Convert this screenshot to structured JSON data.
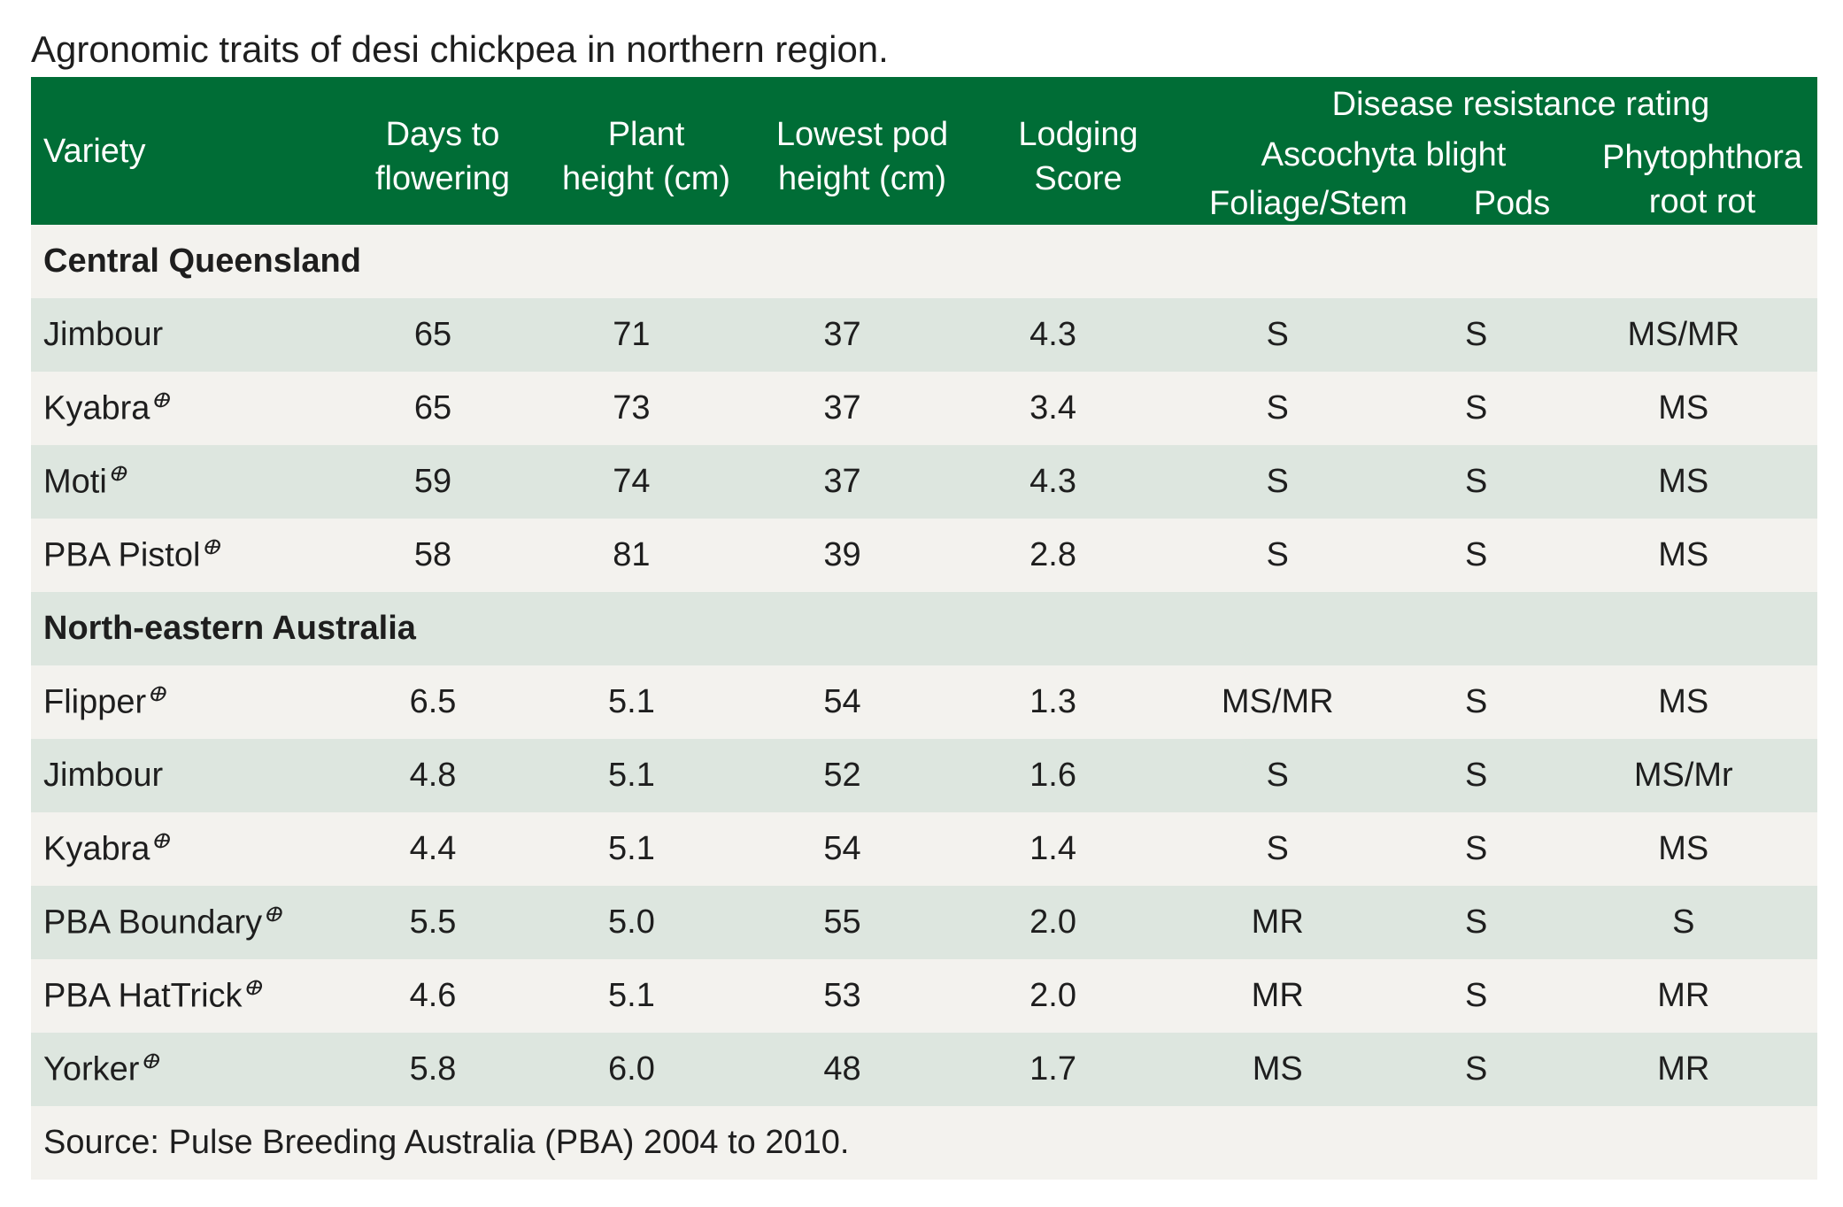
{
  "title": "Agronomic traits of desi chickpea in northern region.",
  "header": {
    "variety": "Variety",
    "days_to_flowering": [
      "Days to",
      "flowering"
    ],
    "plant_height": [
      "Plant",
      "height (cm)"
    ],
    "lowest_pod_height": [
      "Lowest pod",
      "height (cm)"
    ],
    "lodging_score": [
      "Lodging",
      "Score"
    ],
    "disease_resistance": "Disease resistance rating",
    "ascochyta_blight": "Ascochyta blight",
    "foliage_stem": "Foliage/Stem",
    "pods": "Pods",
    "phytophthora": [
      "Phytophthora",
      "root rot"
    ]
  },
  "pbr_symbol": "ⴲ",
  "sections": [
    {
      "name": "Central Queensland",
      "rows": [
        {
          "variety": "Jimbour",
          "pbr": false,
          "days": "65",
          "height": "71",
          "pod": "37",
          "lodging": "4.3",
          "foliage": "S",
          "pods": "S",
          "phyto": "MS/MR"
        },
        {
          "variety": "Kyabra",
          "pbr": true,
          "days": "65",
          "height": "73",
          "pod": "37",
          "lodging": "3.4",
          "foliage": "S",
          "pods": "S",
          "phyto": "MS"
        },
        {
          "variety": "Moti",
          "pbr": true,
          "days": "59",
          "height": "74",
          "pod": "37",
          "lodging": "4.3",
          "foliage": "S",
          "pods": "S",
          "phyto": "MS"
        },
        {
          "variety": "PBA Pistol",
          "pbr": true,
          "days": "58",
          "height": "81",
          "pod": "39",
          "lodging": "2.8",
          "foliage": "S",
          "pods": "S",
          "phyto": "MS"
        }
      ]
    },
    {
      "name": "North-eastern Australia",
      "rows": [
        {
          "variety": "Flipper",
          "pbr": true,
          "days": "6.5",
          "height": "5.1",
          "pod": "54",
          "lodging": "1.3",
          "foliage": "MS/MR",
          "pods": "S",
          "phyto": "MS"
        },
        {
          "variety": "Jimbour",
          "pbr": false,
          "days": "4.8",
          "height": "5.1",
          "pod": "52",
          "lodging": "1.6",
          "foliage": "S",
          "pods": "S",
          "phyto": "MS/Mr"
        },
        {
          "variety": "Kyabra",
          "pbr": true,
          "days": "4.4",
          "height": "5.1",
          "pod": "54",
          "lodging": "1.4",
          "foliage": "S",
          "pods": "S",
          "phyto": "MS"
        },
        {
          "variety": "PBA Boundary",
          "pbr": true,
          "days": "5.5",
          "height": "5.0",
          "pod": "55",
          "lodging": "2.0",
          "foliage": "MR",
          "pods": "S",
          "phyto": "S"
        },
        {
          "variety": "PBA HatTrick",
          "pbr": true,
          "days": "4.6",
          "height": "5.1",
          "pod": "53",
          "lodging": "2.0",
          "foliage": "MR",
          "pods": "S",
          "phyto": "MR"
        },
        {
          "variety": "Yorker",
          "pbr": true,
          "days": "5.8",
          "height": "6.0",
          "pod": "48",
          "lodging": "1.7",
          "foliage": "MS",
          "pods": "S",
          "phyto": "MR"
        }
      ]
    }
  ],
  "source": "Source: Pulse Breeding Australia (PBA) 2004 to 2010.",
  "colors": {
    "header_bg": "#006d36",
    "row_light": "#f3f2ee",
    "row_tint": "#dde6df"
  }
}
